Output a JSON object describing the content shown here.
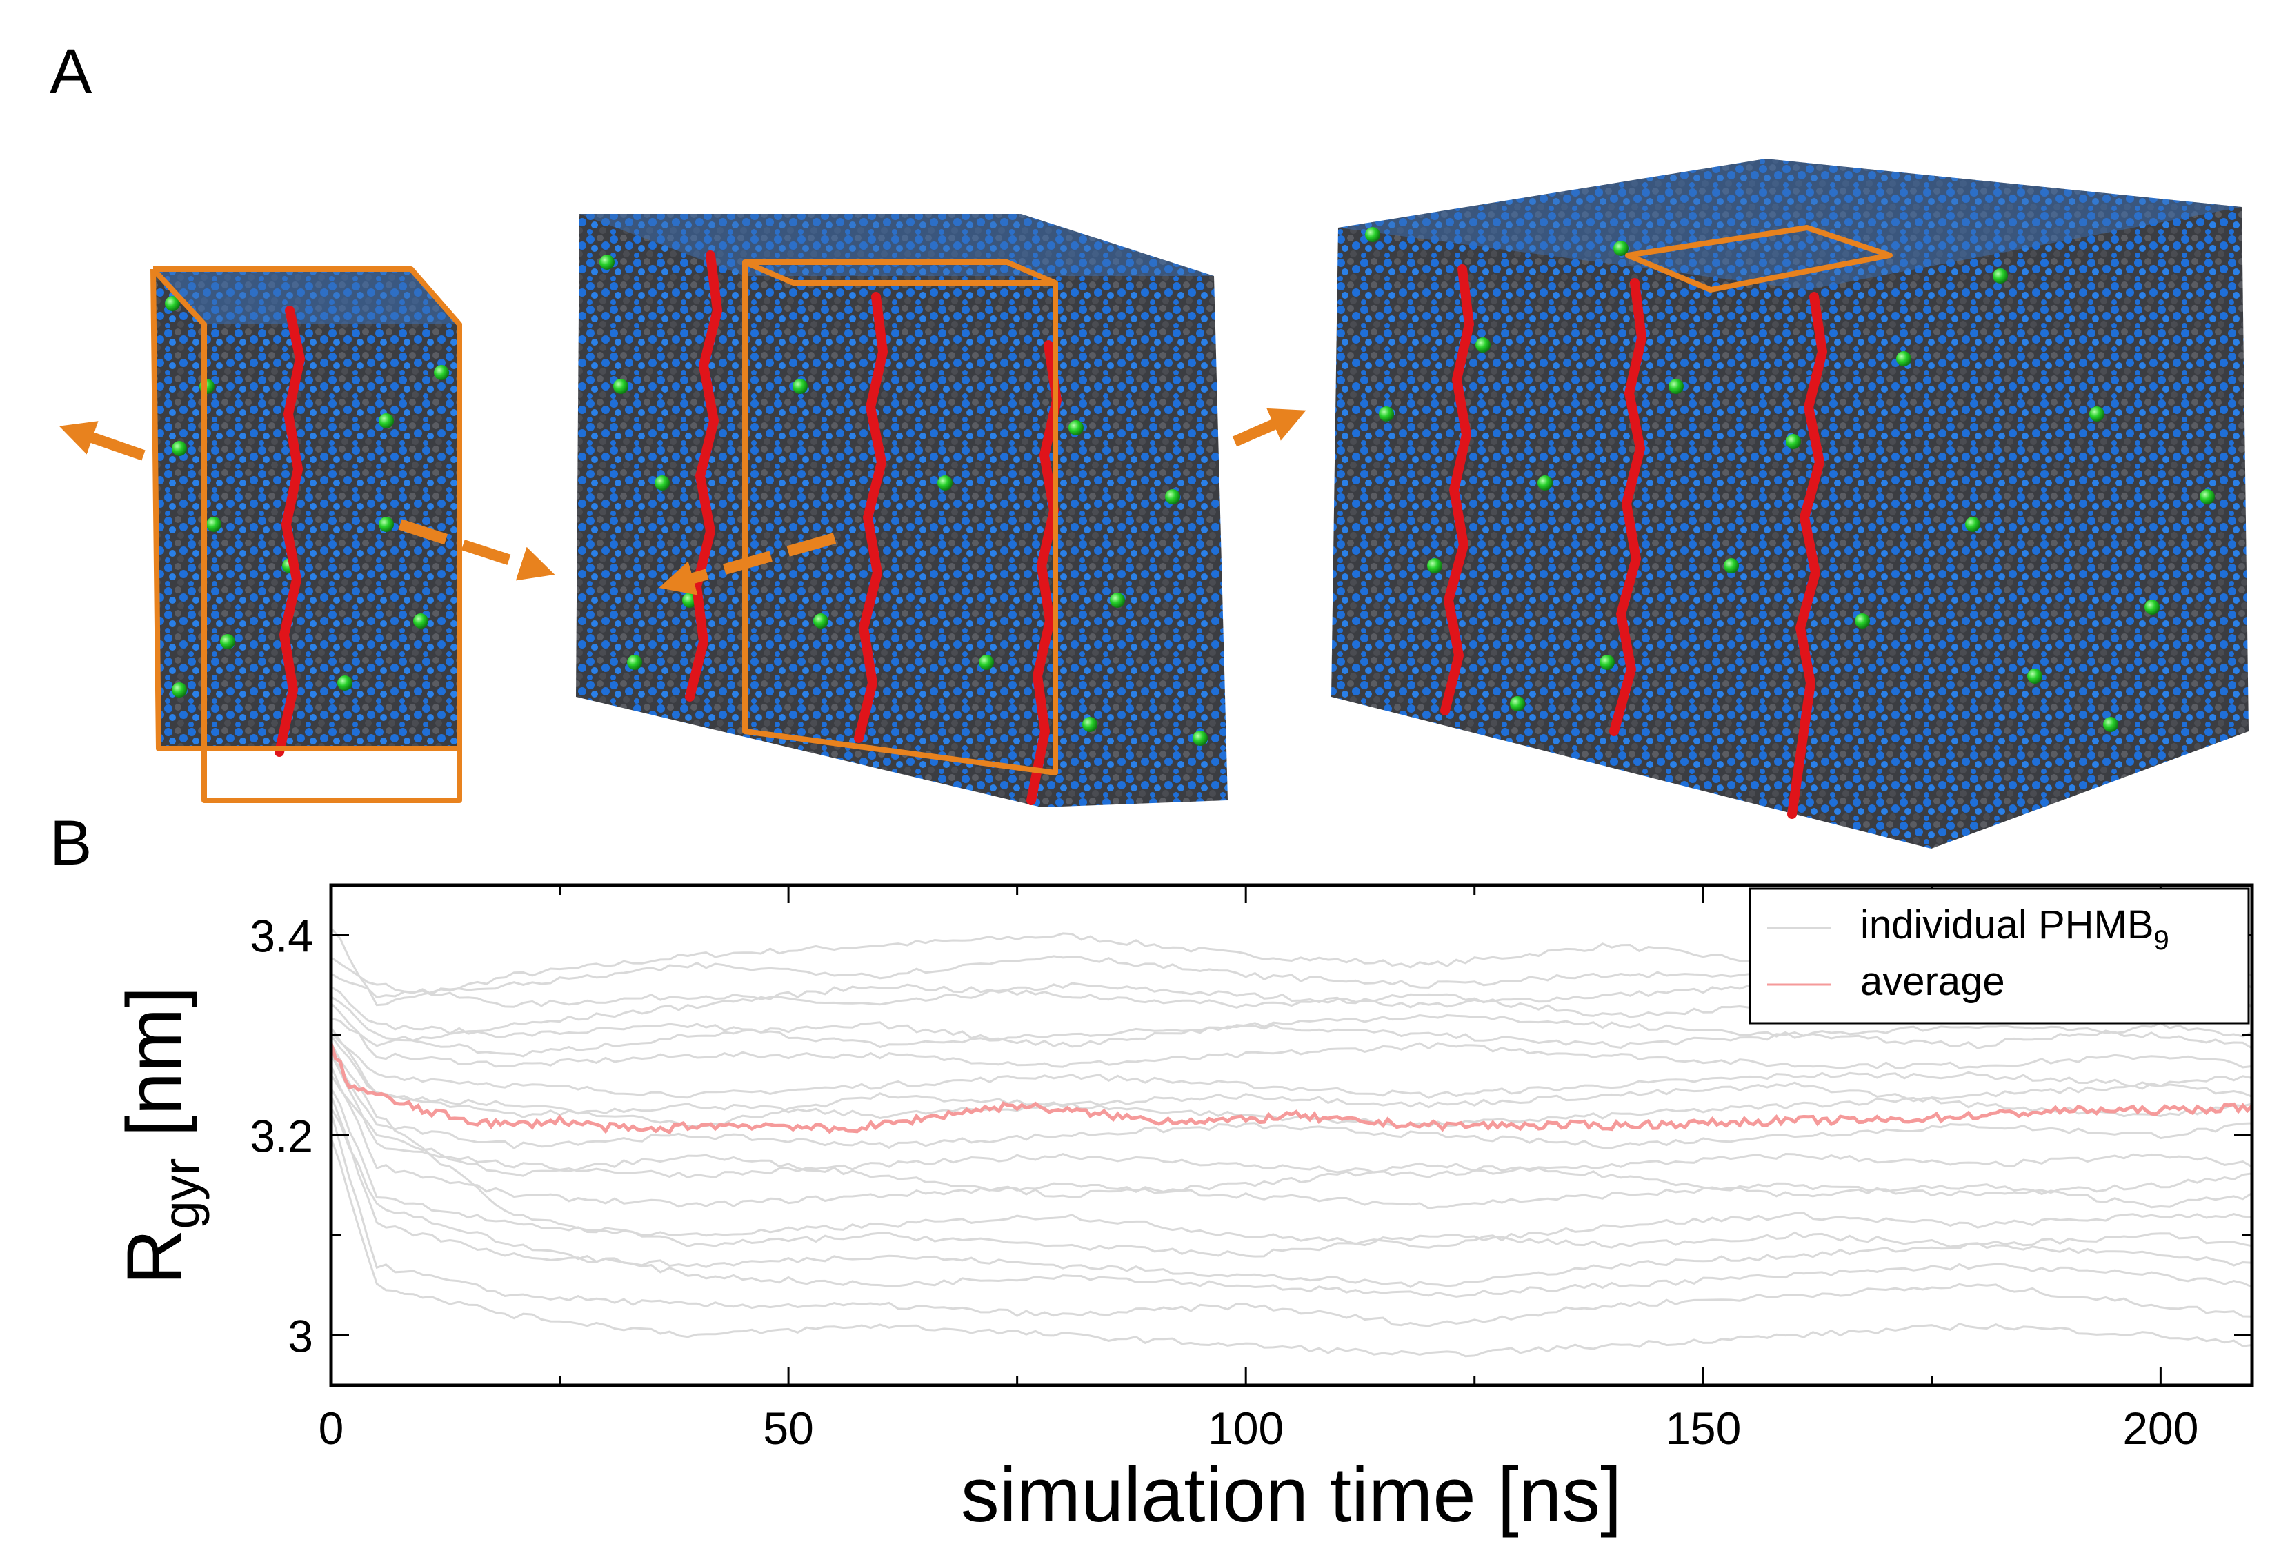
{
  "panels": {
    "a_label": "A",
    "b_label": "B"
  },
  "colors": {
    "box_edge": "#e8821e",
    "polymer_chain": "#e0141a",
    "counter_ion": "#27d12a",
    "water_blue": "#1f6fd8",
    "carbon_grey": "#3b3d42",
    "individual_line": "#d9d9d9",
    "average_line": "#f59a9a"
  },
  "chart_data": {
    "type": "line",
    "title": "",
    "xlabel": "simulation time [ns]",
    "ylabel_main": "R",
    "ylabel_sub": "gyr",
    "ylabel_unit": " [nm]",
    "xlim": [
      0,
      210
    ],
    "ylim": [
      2.95,
      3.45
    ],
    "xticks": [
      0,
      50,
      100,
      150,
      200
    ],
    "xtick_labels": [
      "0",
      "50",
      "100",
      "150",
      "200"
    ],
    "yticks": [
      3.0,
      3.2,
      3.4
    ],
    "ytick_labels": [
      "3",
      "3.2",
      "3.4"
    ],
    "legend": {
      "placement": "top-right",
      "entries": [
        {
          "label_main": "individual PHMB",
          "label_sub": "9",
          "series": "individual"
        },
        {
          "label_main": "average",
          "label_sub": "",
          "series": "average"
        }
      ]
    },
    "series": [
      {
        "name": "average",
        "x": [
          0,
          2,
          5,
          10,
          15,
          20,
          25,
          30,
          35,
          40,
          50,
          55,
          60,
          70,
          75,
          80,
          90,
          100,
          105,
          110,
          120,
          130,
          140,
          150,
          160,
          170,
          180,
          190,
          200,
          210
        ],
        "y": [
          3.29,
          3.25,
          3.24,
          3.225,
          3.215,
          3.21,
          3.215,
          3.208,
          3.205,
          3.21,
          3.21,
          3.205,
          3.21,
          3.225,
          3.23,
          3.225,
          3.215,
          3.215,
          3.22,
          3.215,
          3.21,
          3.21,
          3.21,
          3.212,
          3.215,
          3.215,
          3.22,
          3.225,
          3.225,
          3.228
        ]
      },
      {
        "name": "individual PHMB9 (representative)",
        "x": [
          0,
          5,
          20,
          40,
          60,
          80,
          100,
          120,
          140,
          160,
          180,
          200,
          210
        ],
        "y_bundle": [
          [
            3.41,
            3.33,
            3.36,
            3.38,
            3.39,
            3.4,
            3.38,
            3.37,
            3.39,
            3.37,
            3.35,
            3.36,
            3.35
          ],
          [
            3.38,
            3.35,
            3.33,
            3.34,
            3.33,
            3.35,
            3.34,
            3.33,
            3.34,
            3.35,
            3.33,
            3.32,
            3.33
          ],
          [
            3.35,
            3.31,
            3.3,
            3.31,
            3.29,
            3.3,
            3.31,
            3.3,
            3.29,
            3.3,
            3.31,
            3.3,
            3.29
          ],
          [
            3.33,
            3.28,
            3.27,
            3.28,
            3.28,
            3.27,
            3.28,
            3.29,
            3.28,
            3.27,
            3.27,
            3.28,
            3.27
          ],
          [
            3.3,
            3.26,
            3.25,
            3.24,
            3.25,
            3.26,
            3.25,
            3.24,
            3.25,
            3.26,
            3.26,
            3.25,
            3.26
          ],
          [
            3.3,
            3.24,
            3.22,
            3.23,
            3.22,
            3.23,
            3.22,
            3.21,
            3.22,
            3.23,
            3.24,
            3.25,
            3.24
          ],
          [
            3.28,
            3.21,
            3.19,
            3.2,
            3.19,
            3.2,
            3.21,
            3.2,
            3.19,
            3.2,
            3.21,
            3.2,
            3.21
          ],
          [
            3.28,
            3.19,
            3.17,
            3.16,
            3.17,
            3.18,
            3.17,
            3.16,
            3.17,
            3.18,
            3.17,
            3.18,
            3.17
          ],
          [
            3.27,
            3.17,
            3.14,
            3.13,
            3.14,
            3.15,
            3.14,
            3.13,
            3.14,
            3.15,
            3.14,
            3.15,
            3.16
          ],
          [
            3.25,
            3.14,
            3.11,
            3.1,
            3.11,
            3.12,
            3.1,
            3.09,
            3.11,
            3.12,
            3.11,
            3.12,
            3.12
          ],
          [
            3.24,
            3.11,
            3.08,
            3.07,
            3.08,
            3.07,
            3.06,
            3.05,
            3.07,
            3.08,
            3.09,
            3.08,
            3.07
          ],
          [
            3.22,
            3.07,
            3.04,
            3.03,
            3.03,
            3.02,
            3.03,
            3.01,
            3.03,
            3.04,
            3.05,
            3.03,
            3.02
          ],
          [
            3.2,
            3.05,
            3.02,
            3.0,
            3.01,
            3.0,
            2.99,
            2.98,
            2.99,
            3.0,
            3.01,
            3.0,
            2.99
          ],
          [
            3.32,
            3.29,
            3.31,
            3.33,
            3.35,
            3.34,
            3.33,
            3.34,
            3.32,
            3.33,
            3.35,
            3.34,
            3.33
          ],
          [
            3.31,
            3.24,
            3.23,
            3.21,
            3.24,
            3.23,
            3.24,
            3.23,
            3.24,
            3.25,
            3.23,
            3.22,
            3.23
          ],
          [
            3.26,
            3.2,
            3.16,
            3.18,
            3.16,
            3.14,
            3.15,
            3.17,
            3.16,
            3.14,
            3.15,
            3.13,
            3.14
          ],
          [
            3.29,
            3.22,
            3.12,
            3.09,
            3.1,
            3.09,
            3.08,
            3.1,
            3.09,
            3.1,
            3.09,
            3.1,
            3.09
          ],
          [
            3.34,
            3.3,
            3.28,
            3.3,
            3.31,
            3.29,
            3.31,
            3.32,
            3.31,
            3.3,
            3.29,
            3.31,
            3.3
          ],
          [
            3.36,
            3.34,
            3.35,
            3.37,
            3.36,
            3.38,
            3.36,
            3.35,
            3.36,
            3.36,
            3.37,
            3.35,
            3.36
          ],
          [
            3.23,
            3.13,
            3.09,
            3.06,
            3.05,
            3.06,
            3.05,
            3.04,
            3.05,
            3.06,
            3.07,
            3.06,
            3.05
          ]
        ]
      }
    ]
  }
}
